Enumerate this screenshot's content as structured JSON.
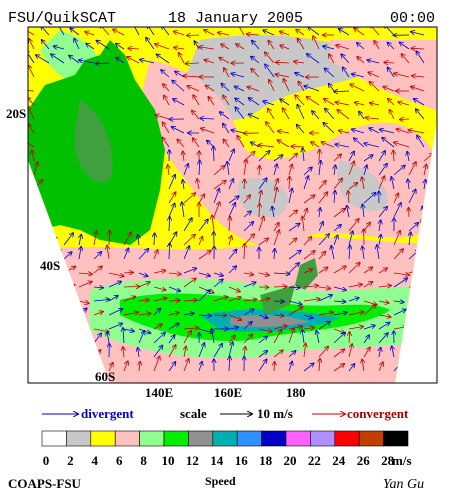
{
  "header": {
    "product": "FSU/QuikSCAT",
    "date": "18 January 2005",
    "time": "00:00"
  },
  "map": {
    "lat_labels": [
      "20S",
      "40S",
      "60S"
    ],
    "lon_labels": [
      "140E",
      "160E",
      "180"
    ]
  },
  "legend": {
    "divergent": "divergent",
    "scale": "scale",
    "scale_value": "10 m/s",
    "convergent": "convergent"
  },
  "colorbar": {
    "colors": [
      "#ffffff",
      "#c8c8c8",
      "#ffff00",
      "#ffc0c0",
      "#90ff90",
      "#00ee00",
      "#909090",
      "#00b0b0",
      "#3090ff",
      "#0000c8",
      "#ff60ff",
      "#b090ff",
      "#ff0000",
      "#c04000",
      "#000000"
    ],
    "labels": [
      0,
      2,
      4,
      6,
      8,
      10,
      12,
      14,
      16,
      18,
      20,
      22,
      24,
      26,
      28
    ],
    "unit": "m/s"
  },
  "footer": {
    "left": "COAPS-FSU",
    "center": "Speed",
    "right": "Yan Gu"
  }
}
